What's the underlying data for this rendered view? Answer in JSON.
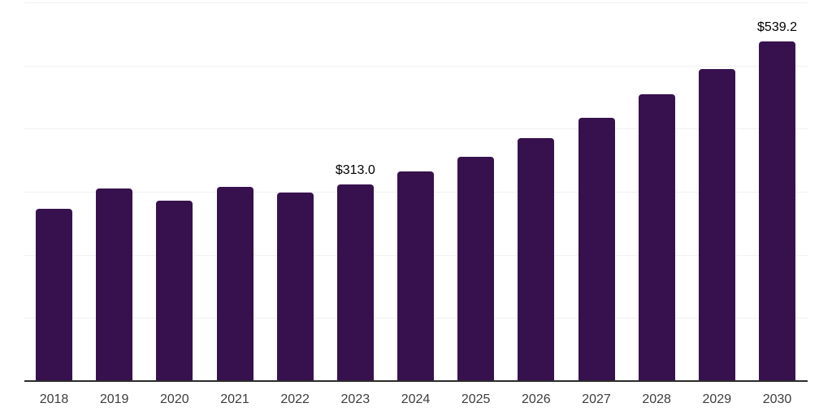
{
  "chart_data": {
    "type": "bar",
    "title": "",
    "xlabel": "",
    "ylabel": "",
    "categories": [
      "2018",
      "2019",
      "2020",
      "2021",
      "2022",
      "2023",
      "2024",
      "2025",
      "2026",
      "2027",
      "2028",
      "2029",
      "2030"
    ],
    "values": [
      274.3,
      306.2,
      287.0,
      308.8,
      299.8,
      313.0,
      333.0,
      357.3,
      386.4,
      418.3,
      455.7,
      495.4,
      539.2
    ],
    "value_labels": {
      "2023": "$313.0",
      "2030": "$539.2"
    },
    "value_prefix": "$",
    "ylim": [
      0,
      600
    ],
    "grid_interval": 100,
    "grid": "horizontal",
    "legend": "none",
    "colors": {
      "bar": "#37114E",
      "gridline": "#F1F0F5",
      "axis_line": "#2B2B2B",
      "year_label": "#3D3D3D",
      "value_label": "#000000",
      "background": "#FFFFFF"
    }
  }
}
